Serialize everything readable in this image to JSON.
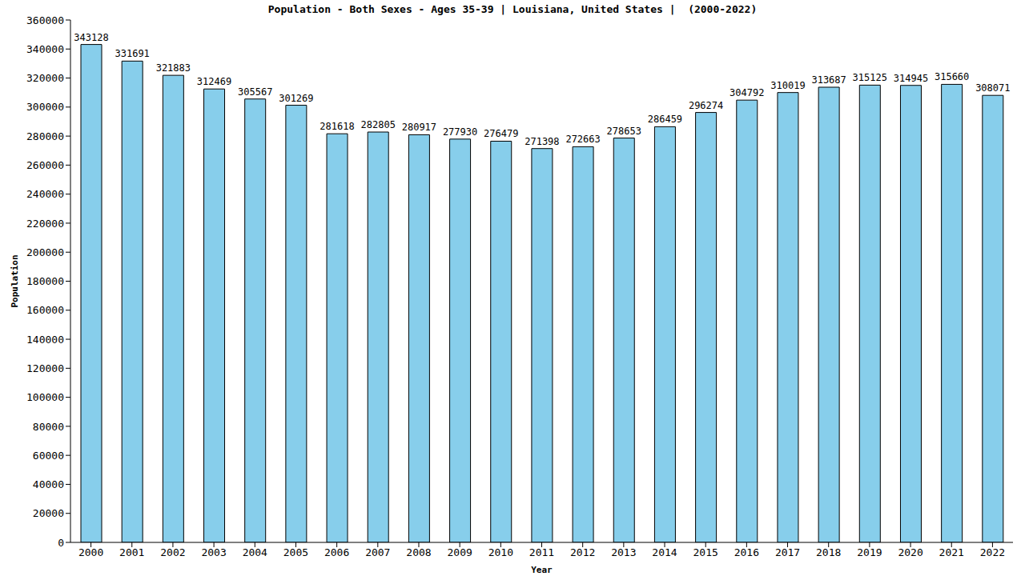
{
  "chart_data": {
    "type": "bar",
    "title": "Population - Both Sexes - Ages 35-39 | Louisiana, United States |  (2000-2022)",
    "x_label": "Year",
    "y_label": "Population",
    "categories": [
      "2000",
      "2001",
      "2002",
      "2003",
      "2004",
      "2005",
      "2006",
      "2007",
      "2008",
      "2009",
      "2010",
      "2011",
      "2012",
      "2013",
      "2014",
      "2015",
      "2016",
      "2017",
      "2018",
      "2019",
      "2020",
      "2021",
      "2022"
    ],
    "values": [
      343128,
      331691,
      321883,
      312469,
      305567,
      301269,
      281618,
      282805,
      280917,
      277930,
      276479,
      271398,
      272663,
      278653,
      286459,
      296274,
      304792,
      310019,
      313687,
      315125,
      314945,
      315660,
      308071
    ],
    "color": "#87ceeb",
    "ylim": [
      0,
      360000
    ],
    "yticks": [
      0,
      20000,
      40000,
      60000,
      80000,
      100000,
      120000,
      140000,
      160000,
      180000,
      200000,
      220000,
      240000,
      260000,
      280000,
      300000,
      320000,
      340000,
      360000
    ],
    "grid": false,
    "data_labels": true
  }
}
